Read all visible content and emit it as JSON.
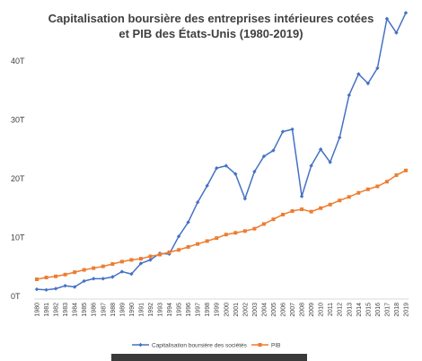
{
  "chart_data": {
    "type": "line",
    "title_lines": [
      "Capitalisation boursière des entreprises intérieures cotées",
      "et PIB des États-Unis (1980-2019)"
    ],
    "x": [
      "1980",
      "1981",
      "1982",
      "1983",
      "1984",
      "1985",
      "1986",
      "1987",
      "1988",
      "1989",
      "1990",
      "1991",
      "1992",
      "1993",
      "1994",
      "1995",
      "1996",
      "1997",
      "1998",
      "1999",
      "2000",
      "2001",
      "2002",
      "2003",
      "2004",
      "2005",
      "2006",
      "2007",
      "2008",
      "2009",
      "2010",
      "2011",
      "2012",
      "2013",
      "2014",
      "2015",
      "2016",
      "2017",
      "2018",
      "2019"
    ],
    "series": [
      {
        "name": "Capitalisation boursière des sociétés",
        "color": "#4472c4",
        "marker": "diamond",
        "values": [
          1.2,
          1.1,
          1.3,
          1.8,
          1.6,
          2.6,
          3.0,
          3.0,
          3.3,
          4.2,
          3.8,
          5.6,
          6.2,
          7.3,
          7.2,
          10.2,
          12.6,
          16.0,
          18.8,
          21.8,
          22.2,
          20.8,
          16.6,
          21.2,
          23.8,
          24.8,
          28.0,
          28.4,
          17.0,
          22.2,
          25.0,
          22.8,
          27.0,
          34.2,
          37.8,
          36.2,
          38.8,
          47.2,
          44.8,
          48.2
        ]
      },
      {
        "name": "PIB",
        "color": "#ed7d31",
        "marker": "square",
        "values": [
          2.9,
          3.2,
          3.4,
          3.7,
          4.1,
          4.5,
          4.8,
          5.1,
          5.5,
          5.9,
          6.2,
          6.4,
          6.8,
          7.1,
          7.5,
          7.9,
          8.4,
          8.9,
          9.4,
          9.9,
          10.5,
          10.8,
          11.1,
          11.5,
          12.3,
          13.1,
          13.9,
          14.5,
          14.8,
          14.4,
          15.0,
          15.6,
          16.3,
          16.9,
          17.6,
          18.2,
          18.7,
          19.5,
          20.6,
          21.4
        ]
      }
    ],
    "y_ticks": [
      {
        "value": 0,
        "label": "0T"
      },
      {
        "value": 10,
        "label": "10T"
      },
      {
        "value": 20,
        "label": "20T"
      },
      {
        "value": 30,
        "label": "30T"
      },
      {
        "value": 40,
        "label": "40T"
      }
    ],
    "ylim": [
      0,
      40
    ],
    "grid": false,
    "legend_position": "bottom"
  }
}
